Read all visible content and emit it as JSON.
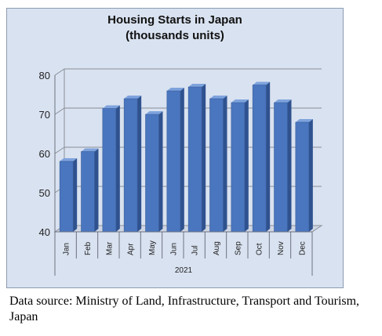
{
  "chart_data": {
    "type": "bar",
    "title": [
      "Housing Starts in Japan",
      "(thousands units)"
    ],
    "categories": [
      "Jan",
      "Feb",
      "Mar",
      "Apr",
      "May",
      "Jun",
      "Jul",
      "Aug",
      "Sep",
      "Oct",
      "Nov",
      "Dec"
    ],
    "x_group_label": "2021",
    "values": [
      58,
      60.5,
      71.5,
      74,
      70,
      76,
      77,
      74,
      73,
      77.5,
      73,
      68
    ],
    "ylim": [
      40,
      80
    ],
    "yticks": [
      40,
      50,
      60,
      70,
      80
    ],
    "grid": true,
    "style": "3d",
    "colors": {
      "bar_front": "#4a76bf",
      "bar_side": "#2f528f",
      "bar_top": "#7ea3dd",
      "background": "#d9e2f0"
    }
  },
  "footer": {
    "source_text": "Data source: Ministry of Land, Infrastructure, Transport and Tourism, Japan"
  }
}
